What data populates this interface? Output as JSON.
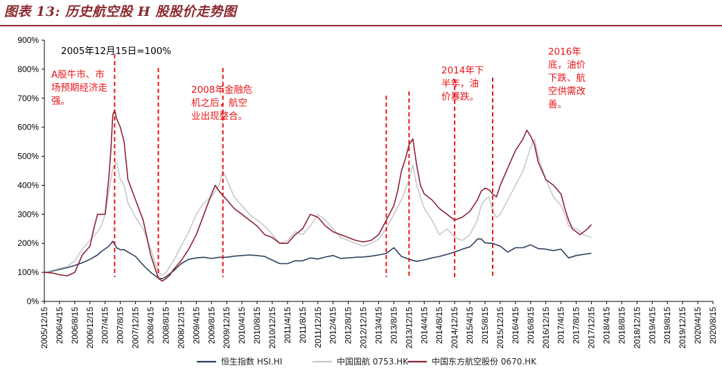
{
  "header": {
    "title": "图表 13: 历史航空股 H 股股价走势图"
  },
  "chart_data": {
    "type": "line",
    "title": "",
    "xlabel": "",
    "ylabel": "",
    "ylim": [
      0,
      900
    ],
    "y_ticks": [
      0,
      100,
      200,
      300,
      400,
      500,
      600,
      700,
      800,
      900
    ],
    "y_tick_suffix": "%",
    "x_ticks": [
      "2005/12/15",
      "2006/4/15",
      "2006/8/15",
      "2006/12/15",
      "2007/4/15",
      "2007/8/15",
      "2007/12/15",
      "2008/4/15",
      "2008/8/15",
      "2008/12/15",
      "2009/4/15",
      "2009/8/15",
      "2009/12/15",
      "2010/4/15",
      "2010/8/15",
      "2010/12/15",
      "2011/4/15",
      "2011/8/15",
      "2011/12/15",
      "2012/4/15",
      "2012/8/15",
      "2012/12/15",
      "2013/4/15",
      "2013/8/15",
      "2013/12/15",
      "2014/4/15",
      "2014/8/15",
      "2014/12/15",
      "2015/4/15",
      "2015/8/15",
      "2015/12/15",
      "2016/4/15",
      "2016/8/15",
      "2016/12/15",
      "2017/4/15",
      "2017/8/15",
      "2017/12/15",
      "2018/4/15",
      "2018/8/15",
      "2018/12/15",
      "2019/4/15",
      "2019/8/15",
      "2019/12/15",
      "2020/4/15",
      "2020/8/15"
    ],
    "base_note": "2005年12月15日=100%",
    "legend_position": "bottom",
    "series": [
      {
        "name": "恒生指数 HSI.HI",
        "color": "#2B3F5C",
        "points": [
          [
            0,
            100
          ],
          [
            2,
            104
          ],
          [
            4,
            110
          ],
          [
            6,
            116
          ],
          [
            8,
            124
          ],
          [
            10,
            133
          ],
          [
            12,
            145
          ],
          [
            14,
            160
          ],
          [
            15,
            172
          ],
          [
            17,
            190
          ],
          [
            18,
            207
          ],
          [
            19,
            185
          ],
          [
            20,
            178
          ],
          [
            21,
            178
          ],
          [
            22,
            170
          ],
          [
            24,
            155
          ],
          [
            26,
            125
          ],
          [
            28,
            100
          ],
          [
            30,
            80
          ],
          [
            31,
            78
          ],
          [
            32,
            85
          ],
          [
            34,
            105
          ],
          [
            36,
            130
          ],
          [
            38,
            145
          ],
          [
            40,
            150
          ],
          [
            42,
            152
          ],
          [
            44,
            148
          ],
          [
            46,
            152
          ],
          [
            48,
            152
          ],
          [
            50,
            156
          ],
          [
            52,
            158
          ],
          [
            54,
            160
          ],
          [
            56,
            158
          ],
          [
            58,
            155
          ],
          [
            60,
            142
          ],
          [
            62,
            130
          ],
          [
            64,
            130
          ],
          [
            66,
            140
          ],
          [
            68,
            140
          ],
          [
            70,
            150
          ],
          [
            72,
            146
          ],
          [
            74,
            153
          ],
          [
            76,
            158
          ],
          [
            78,
            148
          ],
          [
            80,
            150
          ],
          [
            82,
            152
          ],
          [
            84,
            153
          ],
          [
            86,
            156
          ],
          [
            88,
            160
          ],
          [
            90,
            165
          ],
          [
            91,
            175
          ],
          [
            92,
            185
          ],
          [
            93,
            170
          ],
          [
            94,
            155
          ],
          [
            96,
            145
          ],
          [
            98,
            138
          ],
          [
            100,
            143
          ],
          [
            102,
            150
          ],
          [
            104,
            155
          ],
          [
            106,
            162
          ],
          [
            108,
            170
          ],
          [
            110,
            180
          ],
          [
            112,
            188
          ],
          [
            113,
            200
          ],
          [
            114,
            215
          ],
          [
            115,
            215
          ],
          [
            116,
            202
          ],
          [
            118,
            200
          ],
          [
            120,
            190
          ],
          [
            122,
            170
          ],
          [
            124,
            185
          ],
          [
            126,
            185
          ],
          [
            128,
            195
          ],
          [
            130,
            182
          ],
          [
            132,
            180
          ],
          [
            134,
            175
          ],
          [
            136,
            180
          ],
          [
            137,
            165
          ],
          [
            138,
            150
          ],
          [
            140,
            158
          ],
          [
            142,
            162
          ],
          [
            144,
            166
          ]
        ]
      },
      {
        "name": "中国国航 0753.HK",
        "color": "#C8C8C8",
        "points": [
          [
            0,
            100
          ],
          [
            3,
            110
          ],
          [
            6,
            120
          ],
          [
            8,
            140
          ],
          [
            10,
            180
          ],
          [
            12,
            210
          ],
          [
            14,
            240
          ],
          [
            15,
            260
          ],
          [
            16,
            300
          ],
          [
            17,
            380
          ],
          [
            18,
            460
          ],
          [
            19,
            480
          ],
          [
            20,
            420
          ],
          [
            21,
            400
          ],
          [
            22,
            340
          ],
          [
            24,
            290
          ],
          [
            26,
            250
          ],
          [
            28,
            180
          ],
          [
            30,
            100
          ],
          [
            31,
            90
          ],
          [
            32,
            100
          ],
          [
            34,
            140
          ],
          [
            36,
            190
          ],
          [
            38,
            240
          ],
          [
            40,
            300
          ],
          [
            42,
            340
          ],
          [
            44,
            360
          ],
          [
            46,
            400
          ],
          [
            47,
            450
          ],
          [
            48,
            420
          ],
          [
            50,
            360
          ],
          [
            52,
            330
          ],
          [
            54,
            300
          ],
          [
            56,
            280
          ],
          [
            58,
            260
          ],
          [
            60,
            230
          ],
          [
            62,
            200
          ],
          [
            64,
            210
          ],
          [
            66,
            240
          ],
          [
            68,
            230
          ],
          [
            70,
            260
          ],
          [
            72,
            300
          ],
          [
            74,
            280
          ],
          [
            76,
            250
          ],
          [
            78,
            220
          ],
          [
            80,
            210
          ],
          [
            82,
            200
          ],
          [
            84,
            190
          ],
          [
            86,
            200
          ],
          [
            88,
            215
          ],
          [
            90,
            250
          ],
          [
            92,
            300
          ],
          [
            94,
            350
          ],
          [
            96,
            420
          ],
          [
            97,
            470
          ],
          [
            98,
            400
          ],
          [
            100,
            320
          ],
          [
            102,
            280
          ],
          [
            104,
            230
          ],
          [
            106,
            250
          ],
          [
            108,
            220
          ],
          [
            110,
            210
          ],
          [
            112,
            230
          ],
          [
            114,
            280
          ],
          [
            115,
            330
          ],
          [
            116,
            350
          ],
          [
            117,
            360
          ],
          [
            118,
            310
          ],
          [
            119,
            290
          ],
          [
            120,
            300
          ],
          [
            122,
            350
          ],
          [
            124,
            400
          ],
          [
            126,
            450
          ],
          [
            127,
            490
          ],
          [
            128,
            530
          ],
          [
            129,
            560
          ],
          [
            130,
            500
          ],
          [
            132,
            420
          ],
          [
            134,
            360
          ],
          [
            136,
            330
          ],
          [
            137,
            300
          ],
          [
            138,
            260
          ],
          [
            140,
            250
          ],
          [
            142,
            230
          ],
          [
            144,
            220
          ]
        ]
      },
      {
        "name": "中国东方航空股份 0670.HK",
        "color": "#8B2232",
        "points": [
          [
            0,
            100
          ],
          [
            2,
            98
          ],
          [
            4,
            92
          ],
          [
            6,
            88
          ],
          [
            8,
            100
          ],
          [
            9,
            130
          ],
          [
            10,
            160
          ],
          [
            11,
            175
          ],
          [
            12,
            190
          ],
          [
            13,
            250
          ],
          [
            14,
            300
          ],
          [
            15,
            300
          ],
          [
            16,
            300
          ],
          [
            17,
            430
          ],
          [
            17.5,
            520
          ],
          [
            18,
            640
          ],
          [
            18.5,
            660
          ],
          [
            19,
            630
          ],
          [
            20,
            600
          ],
          [
            21,
            550
          ],
          [
            22,
            420
          ],
          [
            24,
            350
          ],
          [
            26,
            280
          ],
          [
            28,
            160
          ],
          [
            30,
            80
          ],
          [
            31,
            70
          ],
          [
            32,
            78
          ],
          [
            33,
            90
          ],
          [
            34,
            110
          ],
          [
            36,
            140
          ],
          [
            38,
            180
          ],
          [
            40,
            230
          ],
          [
            42,
            300
          ],
          [
            44,
            370
          ],
          [
            45,
            400
          ],
          [
            46,
            380
          ],
          [
            48,
            350
          ],
          [
            50,
            320
          ],
          [
            52,
            300
          ],
          [
            54,
            280
          ],
          [
            56,
            260
          ],
          [
            58,
            230
          ],
          [
            60,
            220
          ],
          [
            62,
            200
          ],
          [
            64,
            200
          ],
          [
            66,
            230
          ],
          [
            68,
            250
          ],
          [
            70,
            300
          ],
          [
            72,
            290
          ],
          [
            74,
            260
          ],
          [
            76,
            240
          ],
          [
            78,
            230
          ],
          [
            80,
            220
          ],
          [
            82,
            210
          ],
          [
            84,
            205
          ],
          [
            86,
            210
          ],
          [
            88,
            230
          ],
          [
            90,
            280
          ],
          [
            92,
            330
          ],
          [
            93,
            380
          ],
          [
            94,
            450
          ],
          [
            95,
            490
          ],
          [
            96,
            540
          ],
          [
            97,
            560
          ],
          [
            98,
            470
          ],
          [
            99,
            400
          ],
          [
            100,
            370
          ],
          [
            102,
            350
          ],
          [
            104,
            320
          ],
          [
            106,
            300
          ],
          [
            108,
            280
          ],
          [
            110,
            290
          ],
          [
            112,
            310
          ],
          [
            114,
            350
          ],
          [
            115,
            380
          ],
          [
            116,
            390
          ],
          [
            117,
            385
          ],
          [
            118,
            370
          ],
          [
            119,
            360
          ],
          [
            120,
            400
          ],
          [
            122,
            460
          ],
          [
            124,
            520
          ],
          [
            126,
            560
          ],
          [
            127,
            590
          ],
          [
            128,
            570
          ],
          [
            129,
            540
          ],
          [
            130,
            480
          ],
          [
            132,
            420
          ],
          [
            134,
            400
          ],
          [
            136,
            370
          ],
          [
            137,
            320
          ],
          [
            138,
            280
          ],
          [
            139,
            250
          ],
          [
            140,
            240
          ],
          [
            141,
            230
          ],
          [
            142,
            240
          ],
          [
            143,
            250
          ],
          [
            144,
            265
          ]
        ]
      }
    ],
    "annotations": [
      {
        "lines": [
          "A股牛市、市",
          "场预期经济走",
          "强。"
        ],
        "markers_at": [
          18.5
        ]
      },
      {
        "lines": [
          "2008年金融危",
          "机之后，航空",
          "业出现整合。"
        ],
        "markers_at": [
          30,
          47
        ]
      },
      {
        "lines": [
          "2014年下",
          "半年，油",
          "价暴跌。"
        ],
        "markers_at": [
          90,
          96
        ]
      },
      {
        "lines": [
          "2016年",
          "底，油价",
          "下跌、航",
          "空供需改",
          "善。"
        ],
        "markers_at": [
          108,
          118
        ]
      }
    ]
  }
}
